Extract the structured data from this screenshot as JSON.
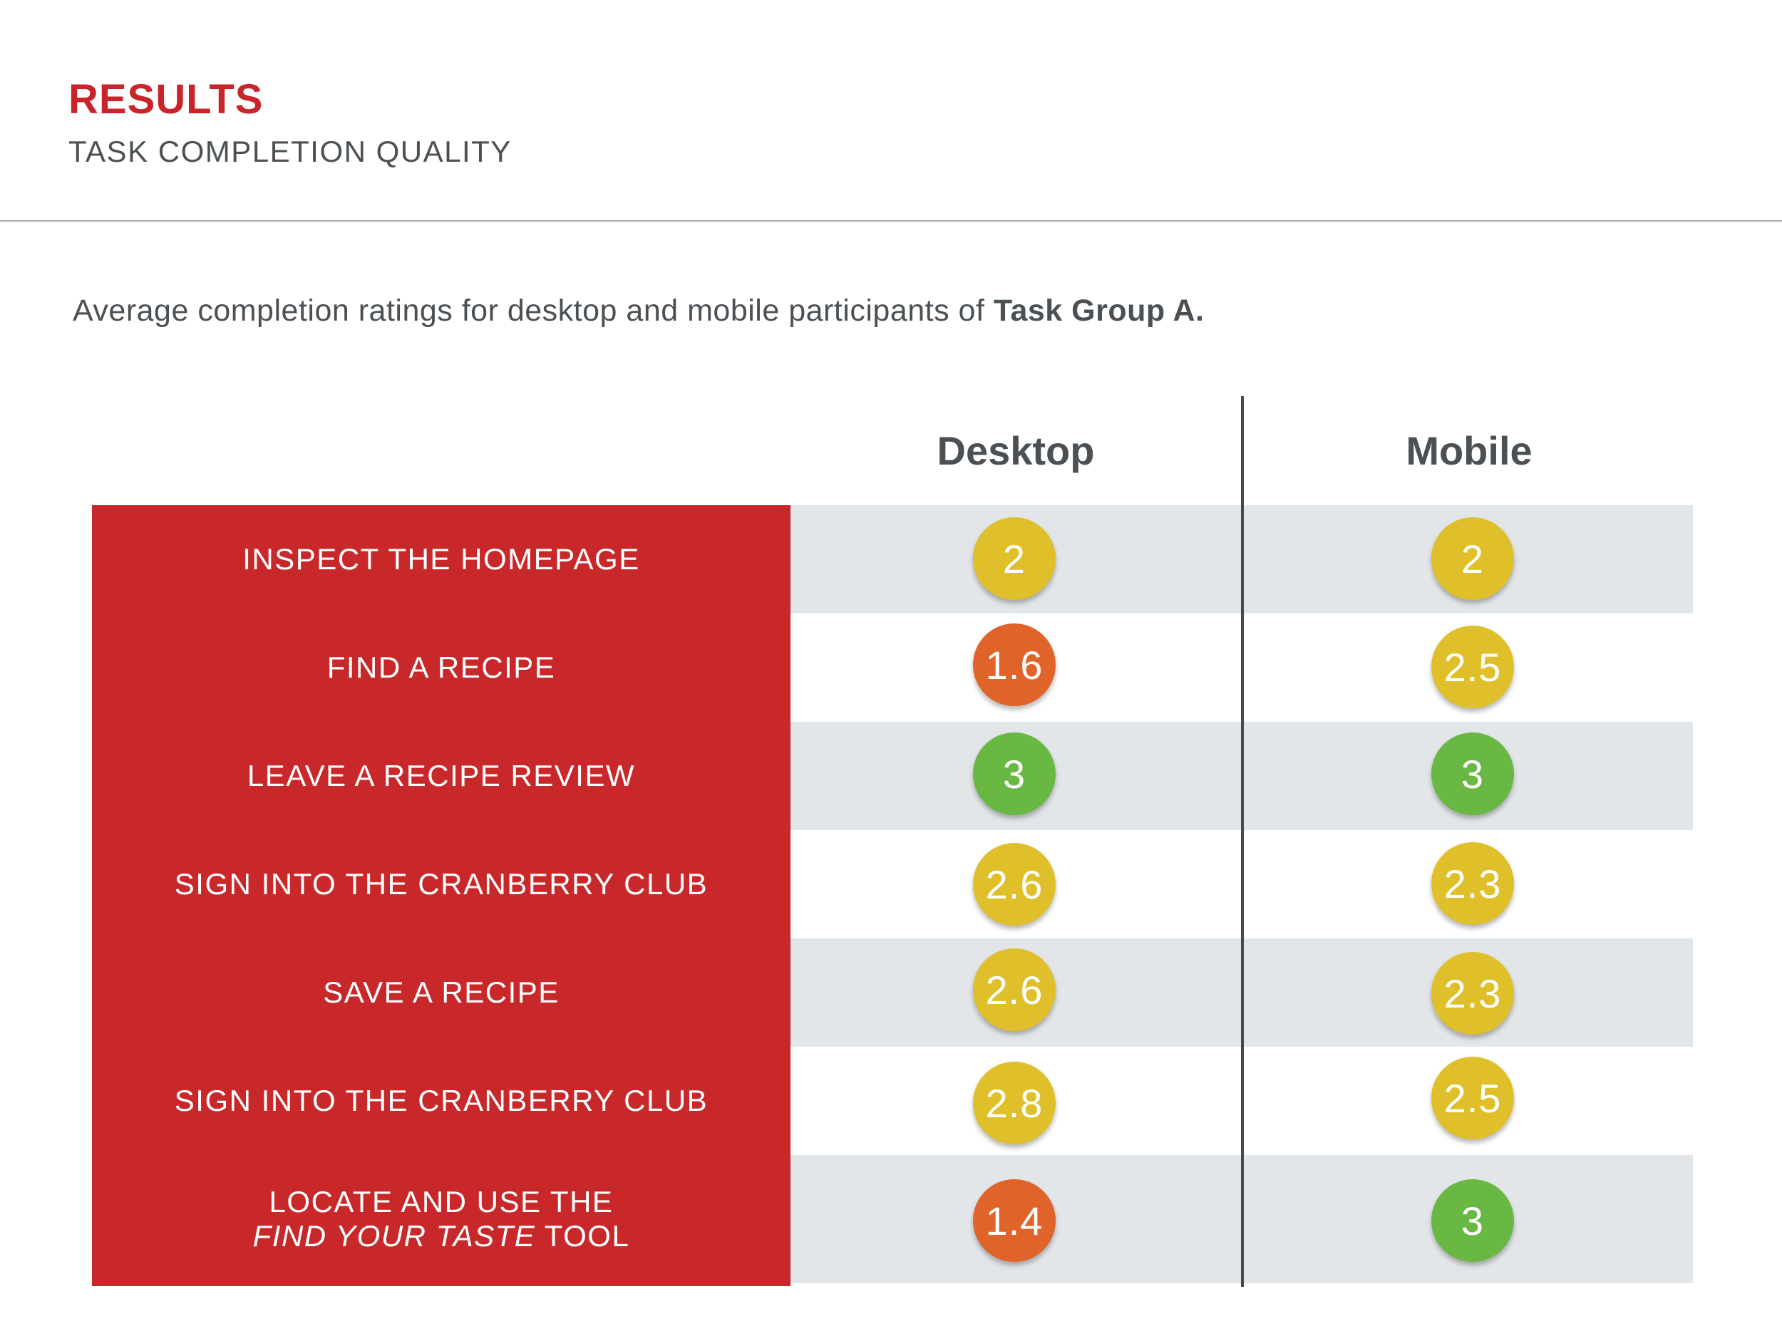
{
  "header": {
    "title": "RESULTS",
    "subtitle": "TASK COMPLETION QUALITY"
  },
  "intro": {
    "text": "Average completion ratings for desktop and mobile participants of ",
    "bold": "Task Group A."
  },
  "columns": {
    "desktop": "Desktop",
    "mobile": "Mobile"
  },
  "colors": {
    "accent_red": "#c8282a",
    "rating_low": "#e0632a",
    "rating_mid": "#dfc02a",
    "rating_high": "#6ab844",
    "row_shade": "#e3e6e9"
  },
  "tasks": [
    {
      "label": "INSPECT THE HOMEPAGE",
      "desktop": "2",
      "mobile": "2"
    },
    {
      "label": "FIND A RECIPE",
      "desktop": "1.6",
      "mobile": "2.5"
    },
    {
      "label": "LEAVE A RECIPE REVIEW",
      "desktop": "3",
      "mobile": "3"
    },
    {
      "label": "SIGN INTO THE CRANBERRY CLUB",
      "desktop": "2.6",
      "mobile": "2.3"
    },
    {
      "label": "SAVE A RECIPE",
      "desktop": "2.6",
      "mobile": "2.3"
    },
    {
      "label": "SIGN INTO THE CRANBERRY CLUB",
      "desktop": "2.8",
      "mobile": "2.5"
    },
    {
      "label_line1": "LOCATE AND USE THE",
      "label_line2_italic": "FIND YOUR TASTE",
      "label_line2_rest": " TOOL",
      "desktop": "1.4",
      "mobile": "3"
    }
  ]
}
